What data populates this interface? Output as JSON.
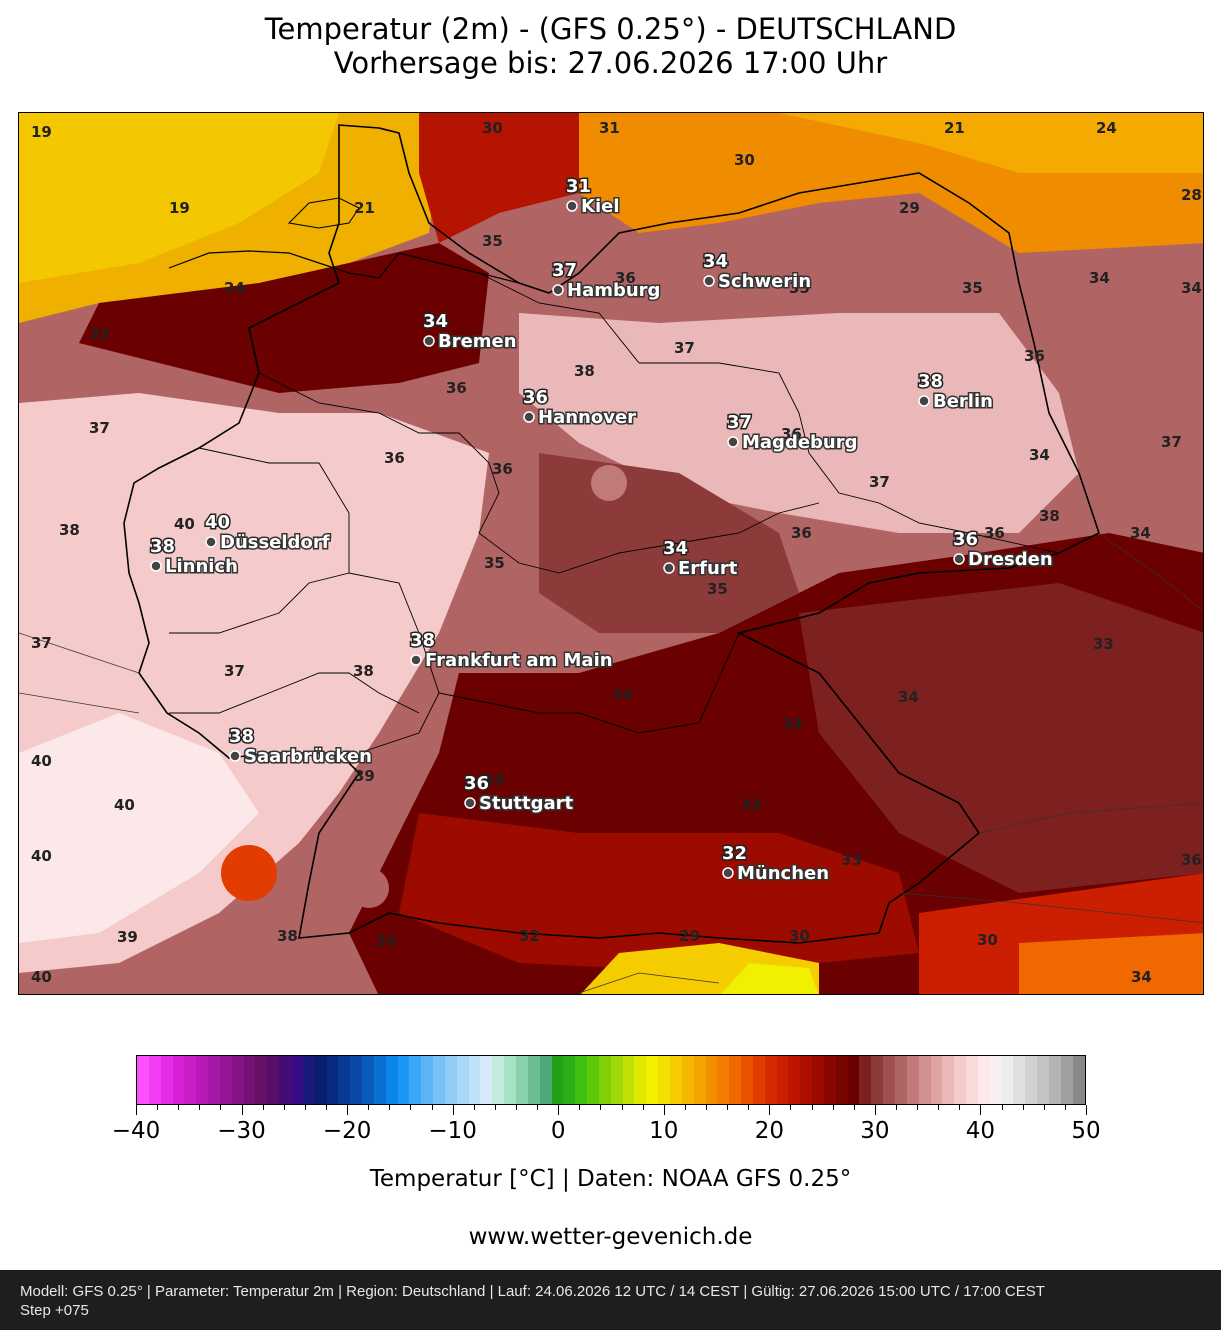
{
  "title_line1": "Temperatur (2m) - (GFS 0.25°) - DEUTSCHLAND",
  "title_line2": "Vorhersage bis: 27.06.2026 17:00 Uhr",
  "cities": [
    {
      "name": "Kiel",
      "temp": "31"
    },
    {
      "name": "Schwerin",
      "temp": "34"
    },
    {
      "name": "Hamburg",
      "temp": "37"
    },
    {
      "name": "Bremen",
      "temp": "34"
    },
    {
      "name": "Hannover",
      "temp": "36"
    },
    {
      "name": "Berlin",
      "temp": "38"
    },
    {
      "name": "Magdeburg",
      "temp": "37"
    },
    {
      "name": "Düsseldorf",
      "temp": "40"
    },
    {
      "name": "Linnich",
      "temp": "38"
    },
    {
      "name": "Erfurt",
      "temp": "34"
    },
    {
      "name": "Dresden",
      "temp": "36"
    },
    {
      "name": "Frankfurt am Main",
      "temp": "38"
    },
    {
      "name": "Saarbrücken",
      "temp": "38"
    },
    {
      "name": "Stuttgart",
      "temp": "36"
    },
    {
      "name": "München",
      "temp": "32"
    }
  ],
  "contour_labels": [
    "19",
    "30",
    "31",
    "30",
    "21",
    "24",
    "28",
    "19",
    "21",
    "35",
    "36",
    "29",
    "35",
    "35",
    "34",
    "24",
    "35",
    "34",
    "36",
    "37",
    "38",
    "36",
    "37",
    "36",
    "34",
    "36",
    "37",
    "36",
    "38",
    "37",
    "38",
    "40",
    "36",
    "35",
    "36",
    "34",
    "37",
    "37",
    "38",
    "35",
    "34",
    "34",
    "33",
    "34",
    "40",
    "40",
    "39",
    "35",
    "33",
    "33",
    "36",
    "40",
    "38",
    "36",
    "32",
    "29",
    "30",
    "30",
    "39",
    "40",
    "34"
  ],
  "colorbar": {
    "ticks": [
      "−40",
      "−30",
      "−20",
      "−10",
      "0",
      "10",
      "20",
      "30",
      "40",
      "50"
    ],
    "label": "Temperatur [°C] | Daten: NOAA GFS 0.25°",
    "colors": [
      "#fb50fb",
      "#f23cf2",
      "#e62ce6",
      "#d822d8",
      "#c81ec8",
      "#b81ab8",
      "#a618a6",
      "#961696",
      "#861486",
      "#761276",
      "#661066",
      "#560e66",
      "#460c76",
      "#3a0a86",
      "#1a1a7a",
      "#0a1e6e",
      "#0a2a80",
      "#0a3a92",
      "#0a4aa6",
      "#0a5cbc",
      "#0a70d2",
      "#0a86ea",
      "#1a98f6",
      "#3aa8f6",
      "#5ab6f6",
      "#78c2f6",
      "#92ccf6",
      "#aad6f8",
      "#c0e0fa",
      "#d6eafc",
      "#c2ecdc",
      "#a6e2c6",
      "#88d2ac",
      "#6abe92",
      "#4ca878",
      "#24a018",
      "#2ab014",
      "#40c010",
      "#60c80c",
      "#80d008",
      "#a0d808",
      "#c0e004",
      "#e0e800",
      "#f0f000",
      "#f4e000",
      "#f4cc00",
      "#f4b800",
      "#f4a400",
      "#f49000",
      "#f47c00",
      "#f06800",
      "#ea5200",
      "#e23c00",
      "#d82a00",
      "#cc1e00",
      "#be1400",
      "#ae0e00",
      "#9c0a00",
      "#8a0600",
      "#780400",
      "#6a0000",
      "#7c2020",
      "#8c3a3a",
      "#9e5050",
      "#b06464",
      "#c07a7a",
      "#d09090",
      "#dea4a4",
      "#eab8b8",
      "#f4caca",
      "#f8dada",
      "#fce8e8",
      "#f6f0f0",
      "#ececec",
      "#e0e0e0",
      "#d2d2d2",
      "#c4c4c4",
      "#b4b4b4",
      "#a0a0a0",
      "#888888"
    ]
  },
  "website": "www.wetter-gevenich.de",
  "footer_line1": "Modell: GFS 0.25° | Parameter: Temperatur 2m | Region: Deutschland | Lauf: 24.06.2026 12 UTC / 14 CEST | Gültig: 27.06.2026 15:00 UTC / 17:00 CEST",
  "footer_line2": "Step +075"
}
